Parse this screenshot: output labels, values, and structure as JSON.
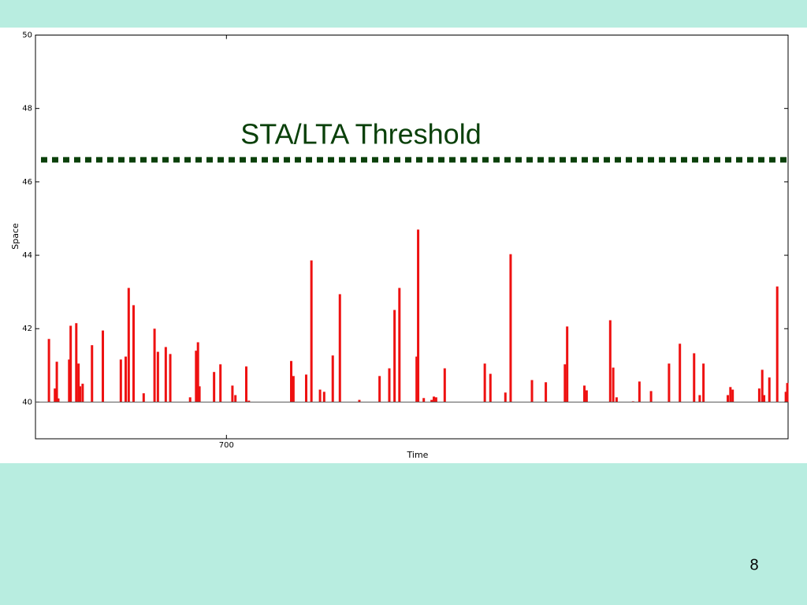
{
  "chart_data": {
    "type": "bar",
    "x_label": "Time",
    "y_label": "Space",
    "x": [
      652.6,
      654.2,
      654.7,
      655.1,
      658.0,
      658.4,
      659.9,
      660.5,
      660.9,
      661.6,
      664.1,
      667.0,
      671.8,
      673.1,
      673.9,
      675.2,
      677.9,
      680.8,
      681.7,
      683.8,
      685.0,
      690.3,
      691.9,
      692.4,
      692.8,
      696.7,
      698.4,
      701.6,
      702.4,
      705.3,
      706.0,
      717.3,
      717.9,
      721.3,
      722.7,
      725.0,
      726.1,
      728.4,
      730.3,
      735.5,
      740.9,
      743.5,
      744.9,
      746.2,
      750.8,
      751.2,
      752.7,
      754.8,
      755.4,
      756.0,
      758.3,
      769.0,
      770.5,
      774.5,
      775.9,
      781.6,
      785.3,
      790.4,
      791.0,
      795.6,
      796.2,
      802.5,
      803.3,
      804.2,
      808.6,
      810.3,
      813.4,
      818.2,
      821.1,
      824.9,
      826.4,
      827.4,
      833.9,
      834.6,
      835.2,
      842.3,
      843.1,
      843.6,
      845.0,
      847.1,
      849.4,
      849.8
    ],
    "values": [
      41.72,
      40.37,
      41.1,
      40.1,
      41.16,
      42.08,
      42.15,
      41.05,
      40.43,
      40.5,
      41.55,
      41.95,
      41.16,
      41.24,
      43.11,
      42.64,
      40.24,
      42.0,
      41.37,
      41.5,
      41.31,
      40.13,
      41.4,
      41.63,
      40.43,
      40.82,
      41.03,
      40.45,
      40.19,
      40.97,
      40.04,
      41.12,
      40.71,
      40.75,
      43.86,
      40.34,
      40.28,
      41.27,
      42.94,
      40.06,
      40.71,
      40.92,
      42.51,
      43.11,
      41.24,
      44.7,
      40.11,
      40.06,
      40.15,
      40.13,
      40.92,
      41.05,
      40.77,
      40.26,
      44.03,
      40.6,
      40.54,
      41.03,
      42.06,
      40.45,
      40.32,
      42.23,
      40.94,
      40.13,
      40.02,
      40.56,
      40.3,
      41.05,
      41.59,
      41.33,
      40.19,
      41.05,
      40.19,
      40.41,
      40.34,
      40.37,
      40.88,
      40.19,
      40.67,
      43.15,
      40.28,
      40.52
    ],
    "color": "#ee1111",
    "baseline": 40,
    "xlim": [
      649,
      850
    ],
    "xticks": [
      700
    ],
    "ylim": [
      39,
      50
    ],
    "yticks": [
      40,
      42,
      44,
      46,
      48,
      50
    ],
    "grid": false,
    "threshold": {
      "label": "STA/LTA Threshold",
      "value": 46.6,
      "color": "#0a400a"
    }
  },
  "slide": {
    "page_number": "8"
  }
}
